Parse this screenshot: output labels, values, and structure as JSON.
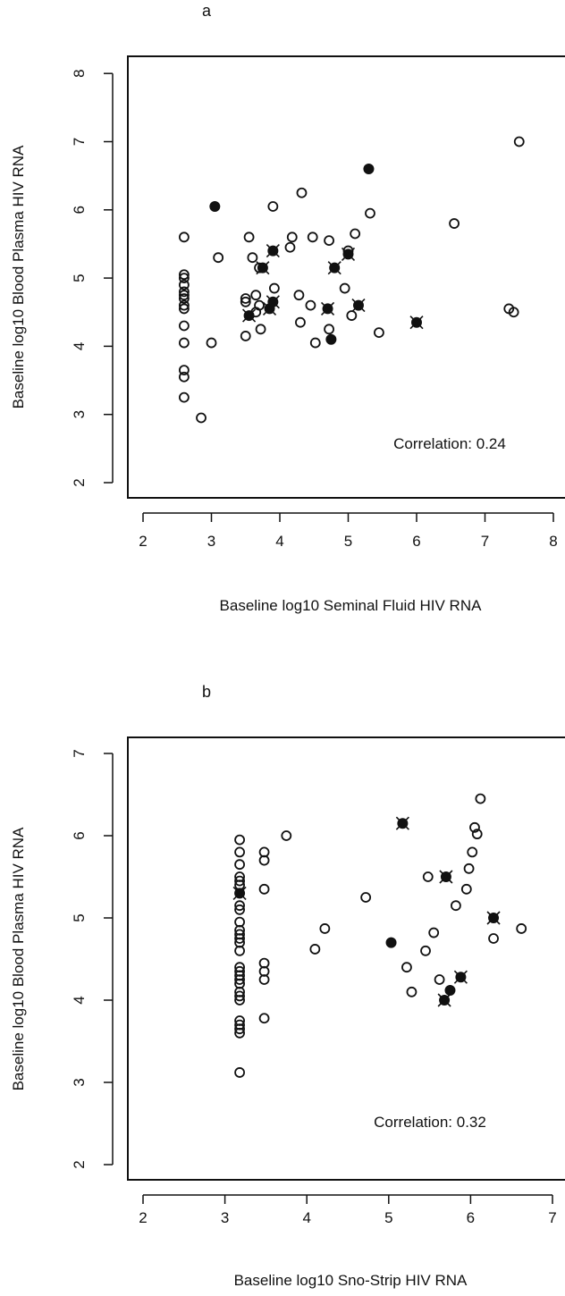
{
  "chart_data": [
    {
      "type": "scatter",
      "panel_label": "a",
      "xlabel": "Baseline log10 Seminal Fluid HIV RNA",
      "ylabel": "Baseline log10 Blood Plasma HIV RNA",
      "xlim": [
        2,
        8
      ],
      "ylim": [
        2,
        8
      ],
      "xticks": [
        "2",
        "3",
        "4",
        "5",
        "6",
        "7",
        "8"
      ],
      "yticks": [
        "2",
        "3",
        "4",
        "5",
        "6",
        "7",
        "8"
      ],
      "annotation": "Correlation: 0.24",
      "grid": false,
      "series": [
        {
          "marker": "open-circle",
          "points": [
            [
              2.6,
              5.6
            ],
            [
              2.6,
              5.05
            ],
            [
              2.6,
              5.0
            ],
            [
              2.6,
              4.9
            ],
            [
              2.6,
              4.8
            ],
            [
              2.6,
              4.75
            ],
            [
              2.6,
              4.7
            ],
            [
              2.6,
              4.6
            ],
            [
              2.6,
              4.55
            ],
            [
              2.6,
              4.3
            ],
            [
              2.6,
              4.05
            ],
            [
              2.6,
              3.65
            ],
            [
              2.6,
              3.55
            ],
            [
              2.6,
              3.25
            ],
            [
              2.85,
              2.95
            ],
            [
              3.0,
              4.05
            ],
            [
              3.1,
              5.3
            ],
            [
              3.5,
              4.7
            ],
            [
              3.5,
              4.65
            ],
            [
              3.5,
              4.15
            ],
            [
              3.55,
              5.6
            ],
            [
              3.6,
              5.3
            ],
            [
              3.65,
              4.75
            ],
            [
              3.65,
              4.5
            ],
            [
              3.7,
              4.6
            ],
            [
              3.7,
              5.15
            ],
            [
              3.72,
              4.25
            ],
            [
              3.9,
              6.05
            ],
            [
              3.92,
              4.85
            ],
            [
              4.15,
              5.45
            ],
            [
              4.18,
              5.6
            ],
            [
              4.28,
              4.75
            ],
            [
              4.3,
              4.35
            ],
            [
              4.32,
              6.25
            ],
            [
              4.45,
              4.6
            ],
            [
              4.48,
              5.6
            ],
            [
              4.52,
              4.05
            ],
            [
              4.72,
              5.55
            ],
            [
              4.72,
              4.25
            ],
            [
              4.95,
              4.85
            ],
            [
              5.0,
              5.4
            ],
            [
              5.05,
              4.45
            ],
            [
              5.1,
              5.65
            ],
            [
              5.32,
              5.95
            ],
            [
              5.45,
              4.2
            ],
            [
              6.55,
              5.8
            ],
            [
              7.35,
              4.55
            ],
            [
              7.42,
              4.5
            ],
            [
              7.5,
              7.0
            ]
          ]
        },
        {
          "marker": "filled-circle",
          "points": [
            [
              3.05,
              6.05
            ],
            [
              5.3,
              6.6
            ],
            [
              4.75,
              4.1
            ]
          ]
        },
        {
          "marker": "filled-x",
          "points": [
            [
              3.55,
              4.45
            ],
            [
              3.75,
              5.15
            ],
            [
              3.85,
              4.55
            ],
            [
              3.9,
              4.65
            ],
            [
              3.9,
              5.4
            ],
            [
              4.7,
              4.55
            ],
            [
              4.8,
              5.15
            ],
            [
              5.0,
              5.35
            ],
            [
              5.15,
              4.6
            ],
            [
              6.0,
              4.35
            ]
          ]
        }
      ]
    },
    {
      "type": "scatter",
      "panel_label": "b",
      "xlabel": "Baseline log10 Sno-Strip HIV RNA",
      "ylabel": "Baseline log10 Blood Plasma HIV RNA",
      "xlim": [
        2,
        7
      ],
      "ylim": [
        2,
        7
      ],
      "xticks": [
        "2",
        "3",
        "4",
        "5",
        "6",
        "7"
      ],
      "yticks": [
        "2",
        "3",
        "4",
        "5",
        "6",
        "7"
      ],
      "annotation": "Correlation: 0.32",
      "grid": false,
      "series": [
        {
          "marker": "open-circle",
          "points": [
            [
              3.18,
              5.95
            ],
            [
              3.18,
              5.8
            ],
            [
              3.18,
              5.65
            ],
            [
              3.18,
              5.5
            ],
            [
              3.18,
              5.45
            ],
            [
              3.18,
              5.4
            ],
            [
              3.18,
              5.15
            ],
            [
              3.18,
              5.1
            ],
            [
              3.18,
              4.95
            ],
            [
              3.18,
              4.85
            ],
            [
              3.18,
              4.8
            ],
            [
              3.18,
              4.75
            ],
            [
              3.18,
              4.7
            ],
            [
              3.18,
              4.6
            ],
            [
              3.18,
              4.4
            ],
            [
              3.18,
              4.35
            ],
            [
              3.18,
              4.3
            ],
            [
              3.18,
              4.25
            ],
            [
              3.18,
              4.2
            ],
            [
              3.18,
              4.1
            ],
            [
              3.18,
              4.05
            ],
            [
              3.18,
              4.0
            ],
            [
              3.18,
              3.75
            ],
            [
              3.18,
              3.7
            ],
            [
              3.18,
              3.65
            ],
            [
              3.18,
              3.6
            ],
            [
              3.18,
              3.12
            ],
            [
              3.48,
              5.8
            ],
            [
              3.48,
              5.7
            ],
            [
              3.48,
              5.35
            ],
            [
              3.48,
              4.45
            ],
            [
              3.48,
              4.35
            ],
            [
              3.48,
              4.25
            ],
            [
              3.48,
              3.78
            ],
            [
              3.75,
              6.0
            ],
            [
              4.1,
              4.62
            ],
            [
              4.22,
              4.87
            ],
            [
              4.72,
              5.25
            ],
            [
              5.22,
              4.4
            ],
            [
              5.28,
              4.1
            ],
            [
              5.45,
              4.6
            ],
            [
              5.48,
              5.5
            ],
            [
              5.55,
              4.82
            ],
            [
              5.62,
              4.25
            ],
            [
              5.82,
              5.15
            ],
            [
              5.95,
              5.35
            ],
            [
              5.98,
              5.6
            ],
            [
              6.02,
              5.8
            ],
            [
              6.05,
              6.1
            ],
            [
              6.08,
              6.02
            ],
            [
              6.12,
              6.45
            ],
            [
              6.28,
              4.75
            ],
            [
              6.62,
              4.87
            ]
          ]
        },
        {
          "marker": "filled-circle",
          "points": [
            [
              5.03,
              4.7
            ],
            [
              5.75,
              4.12
            ]
          ]
        },
        {
          "marker": "filled-x",
          "points": [
            [
              3.18,
              5.3
            ],
            [
              5.17,
              6.15
            ],
            [
              5.7,
              5.5
            ],
            [
              5.68,
              4.0
            ],
            [
              5.88,
              4.28
            ],
            [
              6.28,
              5.0
            ]
          ]
        }
      ]
    }
  ]
}
